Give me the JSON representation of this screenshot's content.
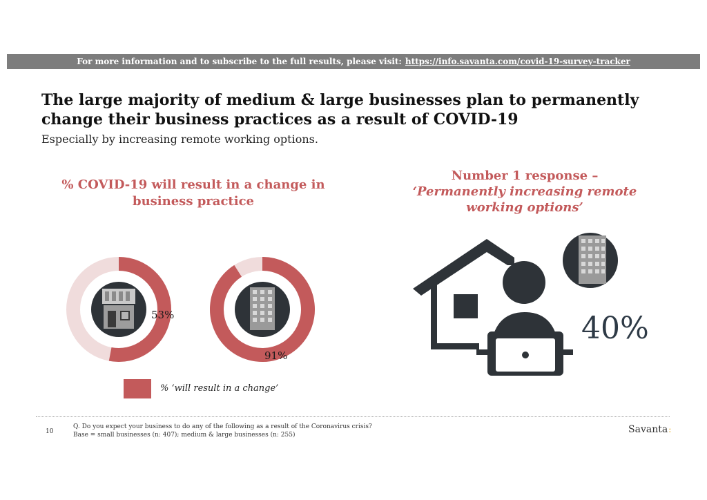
{
  "banner": {
    "text": "For more information and to subscribe to the full results, please visit:",
    "link": "https://info.savanta.com/covid-19-survey-tracker"
  },
  "title": "The large majority of medium & large businesses plan to permanently change their business practices as a result of COVID-19",
  "subtitle": "Especially by increasing remote working options.",
  "response": {
    "line1": "Number 1 response –",
    "line2": "‘Permanently increasing remote",
    "line3": "working options’",
    "value_label": "40%",
    "value": 40
  },
  "chart_data": {
    "type": "donut",
    "title": "% COVID-19 will result in a change in business practice",
    "categories": [
      "small-businesses-icon",
      "medium-large-businesses-icon"
    ],
    "series": [
      {
        "name": "% ‘will result in a change’",
        "values": [
          53,
          91
        ],
        "labels": [
          "53%",
          "91%"
        ],
        "color": "#c35a5b"
      }
    ],
    "remainder_color": "#f0dcdc",
    "legend": "bottom"
  },
  "footer": {
    "page": "10",
    "question": "Q. Do you expect your business to do any of the following as a result of the Coronavirus crisis?",
    "base": "Base = small businesses (n: 407); medium & large businesses (n: 255)",
    "brand": "Savanta",
    "brand_mark": ":"
  },
  "colors": {
    "accent": "#c35a5b",
    "banner": "#7d7d7d",
    "icon_dark": "#2e3338",
    "percent_text": "#2e3a46"
  }
}
